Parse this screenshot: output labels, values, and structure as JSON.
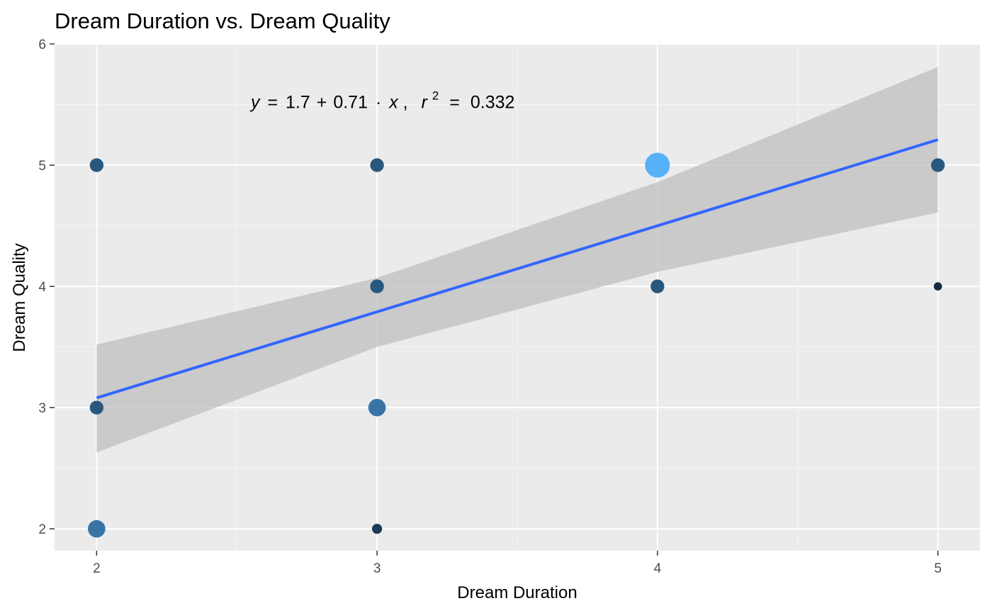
{
  "chart_data": {
    "type": "scatter",
    "title": "Dream Duration vs. Dream Quality",
    "xlabel": "Dream Duration",
    "ylabel": "Dream Quality",
    "xlim": [
      1.85,
      5.15
    ],
    "ylim": [
      1.82,
      6.0
    ],
    "x_ticks": [
      "2",
      "3",
      "4",
      "5"
    ],
    "y_ticks": [
      "2",
      "3",
      "4",
      "5",
      "6"
    ],
    "grid": true,
    "legend": "none",
    "points": [
      {
        "x": 2,
        "y": 5,
        "count": 2
      },
      {
        "x": 2,
        "y": 3,
        "count": 2
      },
      {
        "x": 2,
        "y": 2,
        "count": 3
      },
      {
        "x": 3,
        "y": 5,
        "count": 2
      },
      {
        "x": 3,
        "y": 4,
        "count": 2
      },
      {
        "x": 3,
        "y": 3,
        "count": 3
      },
      {
        "x": 3,
        "y": 2,
        "count": 1
      },
      {
        "x": 4,
        "y": 5,
        "count": 5
      },
      {
        "x": 4,
        "y": 4,
        "count": 2
      },
      {
        "x": 5,
        "y": 5,
        "count": 2
      },
      {
        "x": 5,
        "y": 4,
        "count": 0.5
      }
    ],
    "regression": {
      "intercept": 1.7,
      "slope": 0.71,
      "r2": 0.332,
      "line": [
        {
          "x": 2,
          "y": 3.08
        },
        {
          "x": 5,
          "y": 5.21
        }
      ],
      "ci_lower": [
        {
          "x": 2,
          "y": 2.63
        },
        {
          "x": 3,
          "y": 3.5
        },
        {
          "x": 4,
          "y": 4.12
        },
        {
          "x": 5,
          "y": 4.61
        }
      ],
      "ci_upper": [
        {
          "x": 2,
          "y": 3.52
        },
        {
          "x": 3,
          "y": 4.07
        },
        {
          "x": 4,
          "y": 4.86
        },
        {
          "x": 5,
          "y": 5.81
        }
      ],
      "equation": {
        "y": "y",
        "eq": "=",
        "intercept": "1.7",
        "plus": "+",
        "slope": "0.71",
        "dot": "·",
        "x": "x",
        "comma": ",",
        "r": "r",
        "exp": "2",
        "r2_eq": "=",
        "r2_value": "0.332"
      },
      "equation_anchor": {
        "x": 2.55,
        "y": 5.47
      }
    },
    "colors": {
      "panel_bg": "#ebebeb",
      "grid_major": "#ffffff",
      "grid_minor": "#f5f5f5",
      "line": "#3366ff",
      "ci_band": "#bfbfbf",
      "point_low": "#132b43",
      "point_high": "#56b1f7"
    }
  }
}
